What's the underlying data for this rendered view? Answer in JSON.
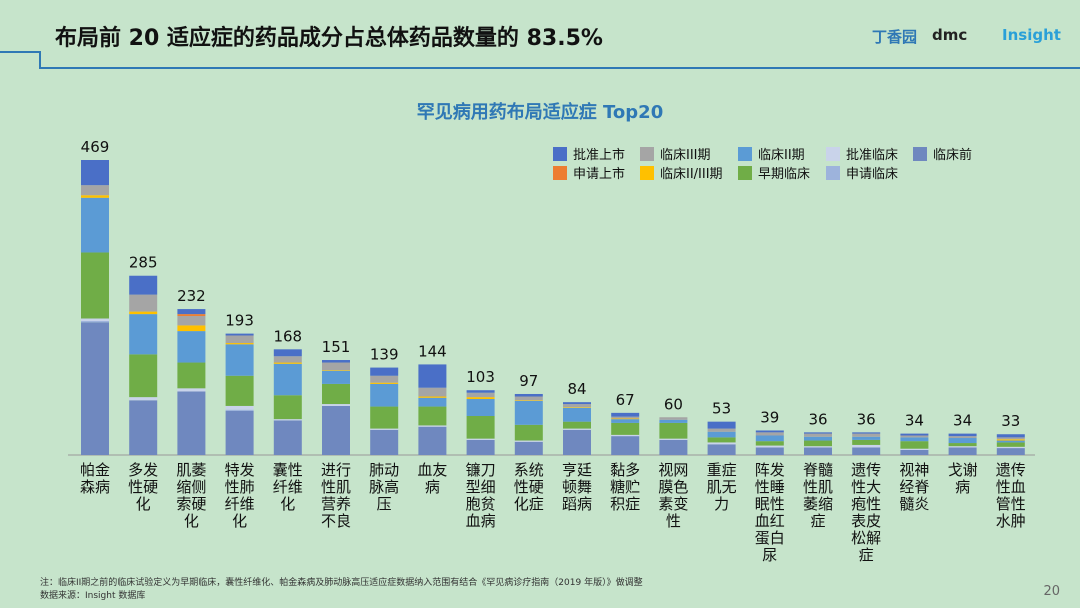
{
  "header": {
    "title": "布局前 20 适应症的药品成分占总体药品数量的 83.5%",
    "logos": [
      "丁香园",
      "dmc",
      "Insight"
    ]
  },
  "chart_data": {
    "type": "stacked-bar",
    "title": "罕见病用药布局适应症 Top20",
    "categories": [
      "帕金森病",
      "多发性硬化",
      "肌萎缩侧索硬化",
      "特发性肺纤维化",
      "囊性纤维化",
      "进行性肌营养不良",
      "肺动脉高压",
      "血友病",
      "镰刀型细胞贫血病",
      "系统性硬化症",
      "亨廷顿舞蹈病",
      "黏多糖贮积症",
      "视网膜色素变性",
      "重症肌无力",
      "阵发性睡眠性血红蛋白尿",
      "脊髓性肌萎缩症",
      "遗传性大疱性表皮松解症",
      "视神经脊髓炎",
      "戈谢病",
      "遗传性血管性水肿"
    ],
    "totals": [
      469,
      285,
      232,
      193,
      168,
      151,
      139,
      144,
      103,
      97,
      84,
      67,
      60,
      53,
      39,
      36,
      36,
      34,
      34,
      33
    ],
    "series": [
      {
        "name": "批准上市",
        "color": "#4a6fc7",
        "values": [
          40,
          30,
          8,
          3,
          11,
          4,
          13,
          37,
          4,
          4,
          3,
          6,
          0,
          11,
          3,
          2,
          2,
          3,
          4,
          5
        ]
      },
      {
        "name": "临床III期",
        "color": "#a5a5a5",
        "values": [
          16,
          27,
          15,
          12,
          10,
          12,
          11,
          14,
          7,
          6,
          5,
          3,
          4,
          5,
          5,
          5,
          5,
          3,
          3,
          3
        ]
      },
      {
        "name": "临床II期",
        "color": "#5b9bd5",
        "values": [
          87,
          64,
          50,
          50,
          50,
          21,
          36,
          14,
          27,
          38,
          22,
          6,
          5,
          9,
          9,
          6,
          5,
          6,
          8,
          3
        ]
      },
      {
        "name": "批准临床",
        "color": "#c9d3ea",
        "values": [
          4,
          5,
          5,
          6,
          2,
          3,
          2,
          2,
          2,
          2,
          2,
          2,
          2,
          3,
          3,
          2,
          4,
          2,
          2,
          2
        ]
      },
      {
        "name": "临床前",
        "color": "#6f88bf",
        "values": [
          211,
          87,
          101,
          70,
          55,
          78,
          40,
          45,
          24,
          21,
          40,
          30,
          24,
          17,
          12,
          12,
          12,
          8,
          12,
          11
        ]
      },
      {
        "name": "申请上市",
        "color": "#ed7d31",
        "values": [
          0,
          0,
          3,
          0,
          0,
          0,
          0,
          0,
          0,
          0,
          0,
          0,
          0,
          0,
          0,
          0,
          0,
          0,
          0,
          0
        ]
      },
      {
        "name": "临床II/III期",
        "color": "#ffc000",
        "values": [
          4,
          4,
          9,
          2,
          2,
          1,
          2,
          2,
          3,
          1,
          1,
          1,
          0,
          0,
          0,
          0,
          0,
          0,
          0,
          2
        ]
      },
      {
        "name": "早期临床",
        "color": "#70ad47",
        "values": [
          105,
          68,
          41,
          48,
          38,
          32,
          35,
          30,
          36,
          25,
          11,
          19,
          25,
          8,
          7,
          9,
          8,
          12,
          5,
          7
        ]
      },
      {
        "name": "申请临床",
        "color": "#9db3dc",
        "values": [
          2,
          0,
          0,
          2,
          0,
          0,
          0,
          0,
          0,
          0,
          0,
          0,
          0,
          0,
          0,
          0,
          0,
          0,
          0,
          0
        ]
      }
    ]
  },
  "footer": {
    "note": "注：临床II期之前的临床试验定义为早期临床，囊性纤维化、帕金森病及肺动脉高压适应症数据纳入范围有结合《罕见病诊疗指南（2019 年版）》做调整",
    "source": "数据来源：Insight 数据库",
    "page": "20"
  }
}
